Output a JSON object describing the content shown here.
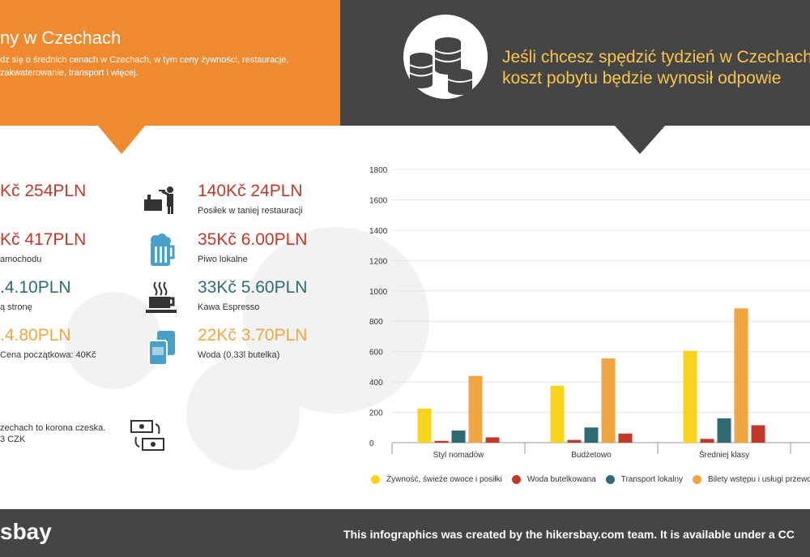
{
  "header": {
    "title": "ny w Czechach",
    "subtitle": "dz się o średnich cenach w Czechach, w tym ceny żywności, restauracje, zakwaterowanie, transport i więcej.",
    "headline_line1": "Jeśli chcesz spędzić tydzień w Czechach",
    "headline_line2": "koszt pobytu będzie wynosił odpowie",
    "colors": {
      "orange": "#f08a31",
      "dark": "#454545",
      "yellow_text": "#f6c54a"
    }
  },
  "prices_left": [
    {
      "price": "Kč 254PLN",
      "label": "",
      "color": "#c0392b"
    },
    {
      "price": "Kč 417PLN",
      "label": "amochodu",
      "color": "#c0392b"
    },
    {
      "price": ".4.10PLN",
      "label": "ą stronę",
      "color": "#2f6b75"
    },
    {
      "price": ".4.80PLN",
      "label": "Cena początkowa: 40Kč",
      "color": "#f0a640"
    }
  ],
  "prices_right": [
    {
      "price": "140Kč 24PLN",
      "label": "Posiłek w taniej restauracji",
      "icon": "waiter-icon",
      "color": "#c0392b"
    },
    {
      "price": "35Kč 6.00PLN",
      "label": "Piwo lokalne",
      "icon": "beer-icon",
      "color": "#c0392b"
    },
    {
      "price": "33Kč 5.60PLN",
      "label": "Kawa Espresso",
      "icon": "coffee-icon",
      "color": "#2f6b75"
    },
    {
      "price": "22Kč 3.70PLN",
      "label": "Woda (0,33l butelka)",
      "icon": "water-icon",
      "color": "#f0a640"
    }
  ],
  "currency": {
    "line1": "zechach to korona czeska.",
    "line2": "3 CZK"
  },
  "footer": {
    "brand": "sbay",
    "credit": "This infographics was created by the hikersbay.com team. It is available under a CC"
  },
  "chart_data": {
    "type": "bar",
    "categories": [
      "Styl nomadów",
      "Budżetowo",
      "Średniej klasy"
    ],
    "series": [
      {
        "name": "Żywność, świeże owoce i posiłki",
        "color": "#f7d419",
        "values": [
          225,
          375,
          605
        ]
      },
      {
        "name": "Woda butelkowana",
        "color": "#c0392b",
        "values": [
          12,
          18,
          25
        ]
      },
      {
        "name": "Transport lokalny",
        "color": "#2f6b75",
        "values": [
          80,
          100,
          160
        ]
      },
      {
        "name": "Bilety wstępu i usługi przewod",
        "color": "#f0a640",
        "values": [
          440,
          555,
          885
        ]
      },
      {
        "name": "",
        "color": "#c0392b",
        "values": [
          35,
          60,
          115
        ]
      }
    ],
    "yticks": [
      0,
      200,
      400,
      600,
      800,
      1000,
      1200,
      1400,
      1600,
      1800
    ],
    "ylim": [
      0,
      1800
    ],
    "grid": true,
    "legend": "bottom"
  }
}
